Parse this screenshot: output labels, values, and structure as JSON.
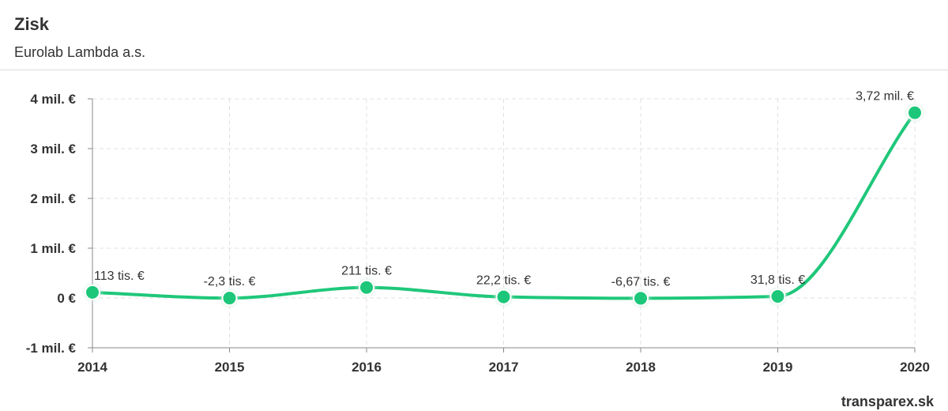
{
  "header": {
    "title": "Zisk",
    "subtitle": "Eurolab Lambda a.s."
  },
  "brand": "transparex.sk",
  "colors": {
    "line": "#1fc77a",
    "grid": "#e0e0e0",
    "axis": "#888888",
    "text": "#333333"
  },
  "chart_data": {
    "type": "line",
    "title": "Zisk",
    "subtitle": "Eurolab Lambda a.s.",
    "categories": [
      "2014",
      "2015",
      "2016",
      "2017",
      "2018",
      "2019",
      "2020"
    ],
    "series": [
      {
        "values": [
          113000,
          -2300,
          211000,
          22200,
          -6670,
          31800,
          3720000
        ],
        "labels": [
          "113 tis. €",
          "-2,3 tis. €",
          "211 tis. €",
          "22,2 tis. €",
          "-6,67 tis. €",
          "31,8 tis. €",
          "3,72 mil. €"
        ]
      }
    ],
    "y_ticks": [
      -1000000,
      0,
      1000000,
      2000000,
      3000000,
      4000000
    ],
    "y_tick_labels": [
      "-1 mil. €",
      "0 €",
      "1 mil. €",
      "2 mil. €",
      "3 mil. €",
      "4 mil. €"
    ],
    "ylim": [
      -1000000,
      4000000
    ],
    "grid": true,
    "legend": "none"
  }
}
